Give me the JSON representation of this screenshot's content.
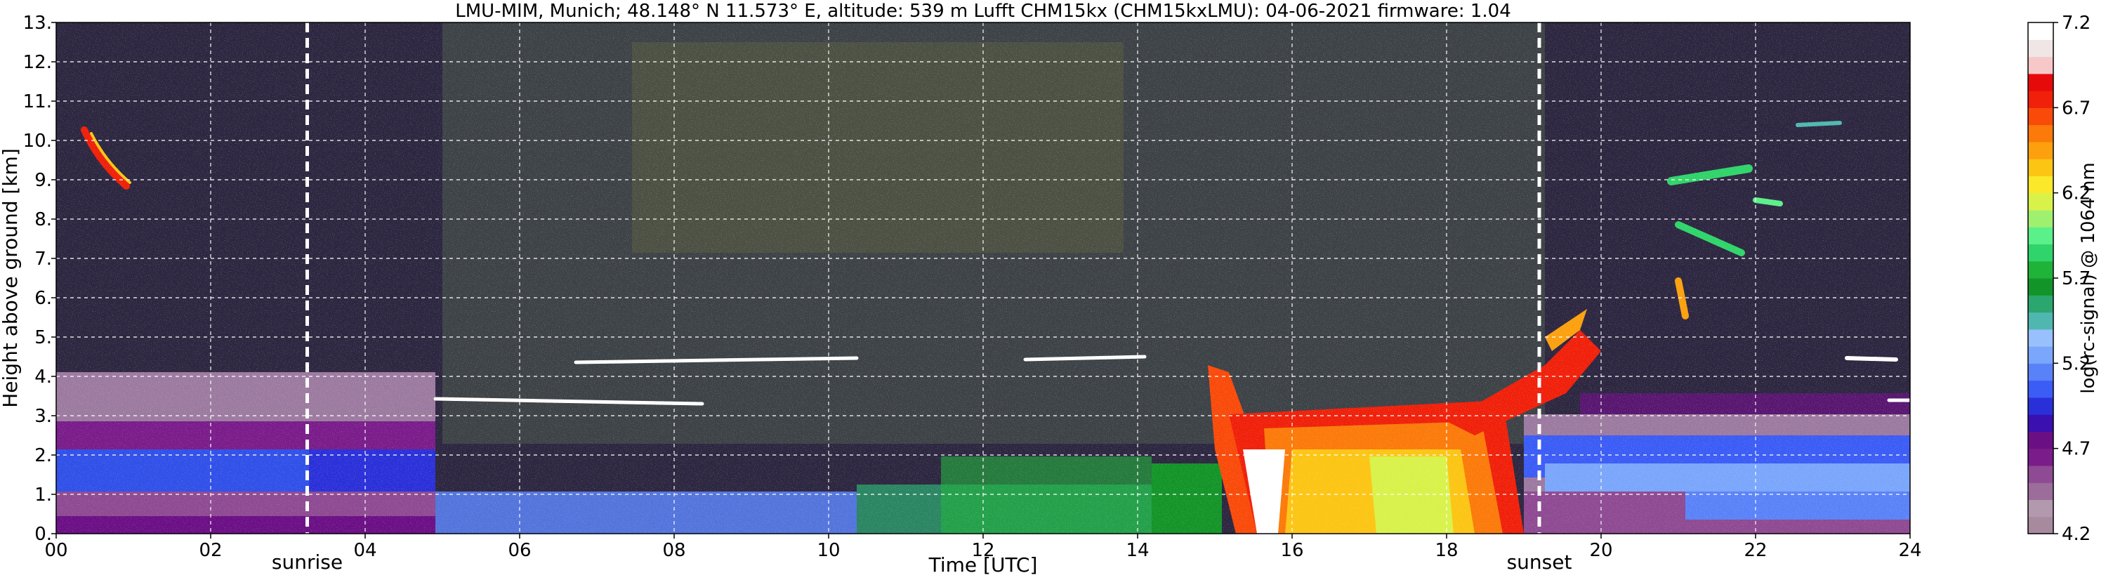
{
  "title": "LMU-MIM, Munich; 48.148° N 11.573° E, altitude: 539 m    Lufft CHM15kx (CHM15kxLMU): 04-06-2021    firmware: 1.04",
  "chart_data": {
    "type": "heatmap",
    "xlabel": "Time [UTC]",
    "ylabel": "Height above ground [km]",
    "xlim": [
      0,
      24
    ],
    "ylim": [
      0,
      13
    ],
    "x_ticks": [
      "00",
      "02",
      "04",
      "06",
      "08",
      "10",
      "12",
      "14",
      "16",
      "18",
      "20",
      "22",
      "24"
    ],
    "x_tick_values": [
      0,
      2,
      4,
      6,
      8,
      10,
      12,
      14,
      16,
      18,
      20,
      22,
      24
    ],
    "y_ticks": [
      "0.",
      "1.",
      "2.",
      "3.",
      "4.",
      "5.",
      "6.",
      "7.",
      "8.",
      "9.",
      "10.",
      "11.",
      "12.",
      "13."
    ],
    "y_tick_values": [
      0,
      1,
      2,
      3,
      4,
      5,
      6,
      7,
      8,
      9,
      10,
      11,
      12,
      13
    ],
    "grid": true,
    "markers": [
      {
        "label": "sunrise",
        "time": 3.25
      },
      {
        "label": "sunset",
        "time": 19.2
      }
    ],
    "colorbar": {
      "label": "log(rc-signal) @ 1064 nm",
      "range": [
        4.2,
        7.2
      ],
      "ticks": [
        "4.2",
        "4.7",
        "5.2",
        "5.7",
        "6.2",
        "6.7",
        "7.2"
      ],
      "tick_values": [
        4.2,
        4.7,
        5.2,
        5.7,
        6.2,
        6.7,
        7.2
      ],
      "colors": [
        "#a78a9e",
        "#b399ad",
        "#9c6c9a",
        "#8e4a92",
        "#7a1c8a",
        "#6b0f85",
        "#3a10b0",
        "#2a30d8",
        "#3b5cf5",
        "#5a82f8",
        "#7aa6fb",
        "#98c0fc",
        "#4fb7b0",
        "#2aa66e",
        "#139428",
        "#1fb33a",
        "#2fd46a",
        "#5af08a",
        "#a0f070",
        "#d8f24a",
        "#fbe82a",
        "#fcc514",
        "#fca00e",
        "#fb7a0a",
        "#f94a0a",
        "#f0200a",
        "#e60a0a",
        "#f7c8c8",
        "#f1e6e6",
        "#ffffff"
      ]
    }
  }
}
